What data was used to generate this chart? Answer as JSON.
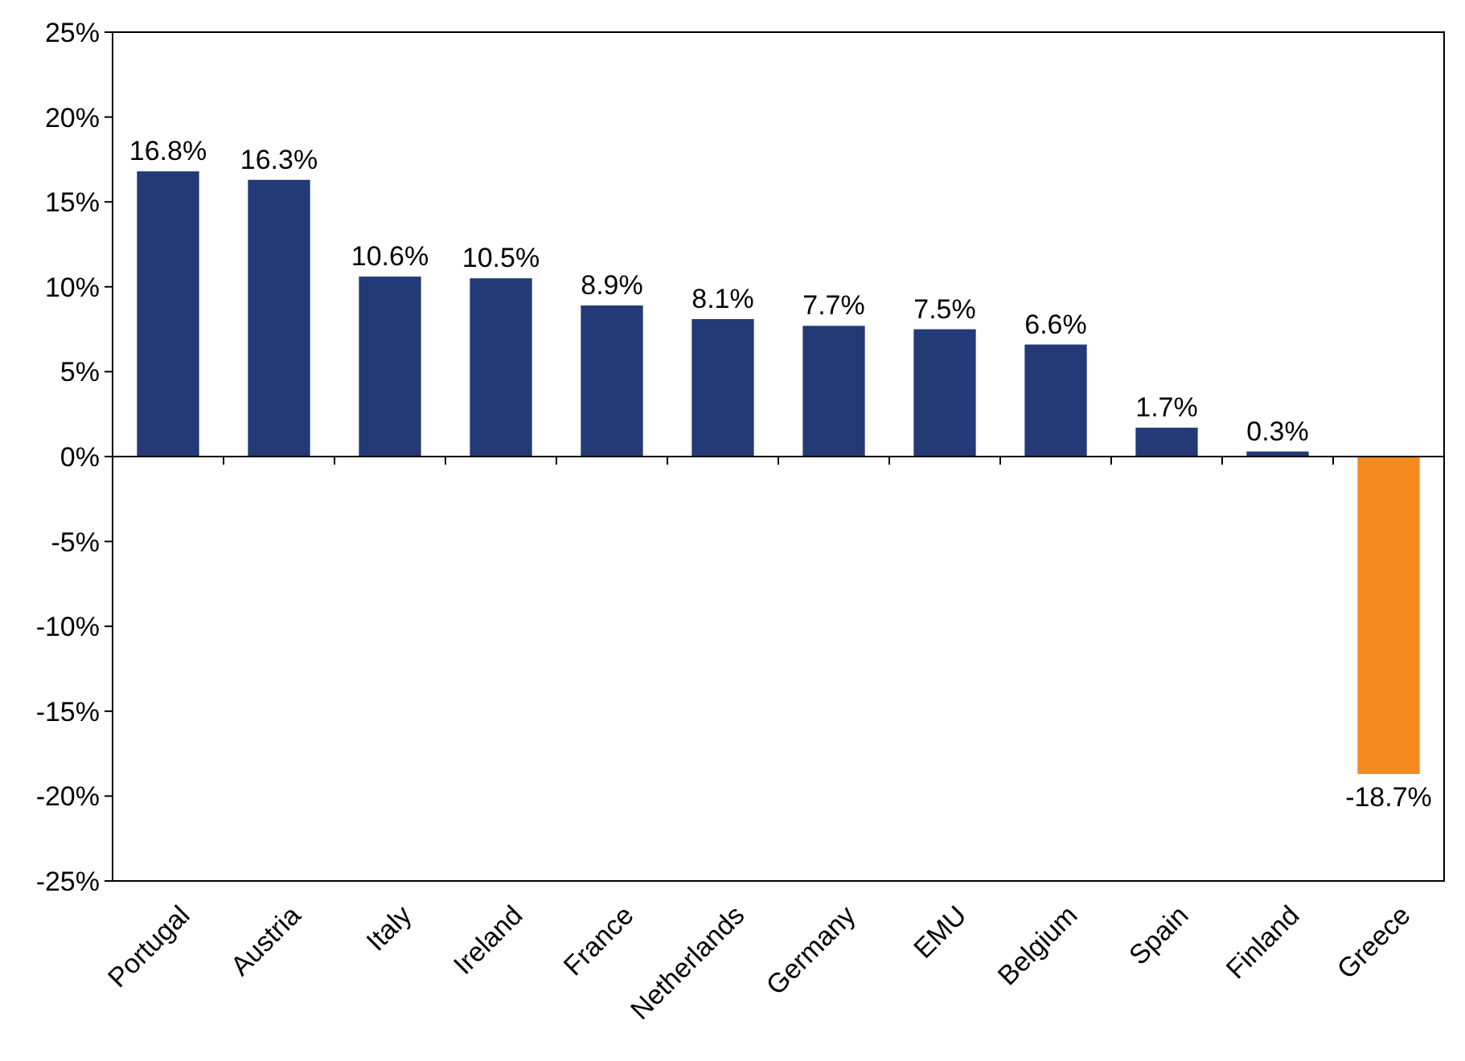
{
  "chart_data": {
    "type": "bar",
    "categories": [
      "Portugal",
      "Austria",
      "Italy",
      "Ireland",
      "France",
      "Netherlands",
      "Germany",
      "EMU",
      "Belgium",
      "Spain",
      "Finland",
      "Greece"
    ],
    "values": [
      16.8,
      16.3,
      10.6,
      10.5,
      8.9,
      8.1,
      7.7,
      7.5,
      6.6,
      1.7,
      0.3,
      -18.7
    ],
    "colors": [
      "#233a77",
      "#233a77",
      "#233a77",
      "#233a77",
      "#233a77",
      "#233a77",
      "#233a77",
      "#233a77",
      "#233a77",
      "#233a77",
      "#233a77",
      "#f58a1f"
    ],
    "value_labels": [
      "16.8%",
      "16.3%",
      "10.6%",
      "10.5%",
      "8.9%",
      "8.1%",
      "7.7%",
      "7.5%",
      "6.6%",
      "1.7%",
      "0.3%",
      "-18.7%"
    ],
    "ylim": [
      -25,
      25
    ],
    "yticks": [
      {
        "value": -25,
        "label": "-25%"
      },
      {
        "value": -20,
        "label": "-20%"
      },
      {
        "value": -15,
        "label": "-15%"
      },
      {
        "value": -10,
        "label": "-10%"
      },
      {
        "value": -5,
        "label": "-5%"
      },
      {
        "value": 0,
        "label": "0%"
      },
      {
        "value": 5,
        "label": "5%"
      },
      {
        "value": 10,
        "label": "10%"
      },
      {
        "value": 15,
        "label": "15%"
      },
      {
        "value": 20,
        "label": "20%"
      },
      {
        "value": 25,
        "label": "25%"
      }
    ],
    "legend": false
  }
}
